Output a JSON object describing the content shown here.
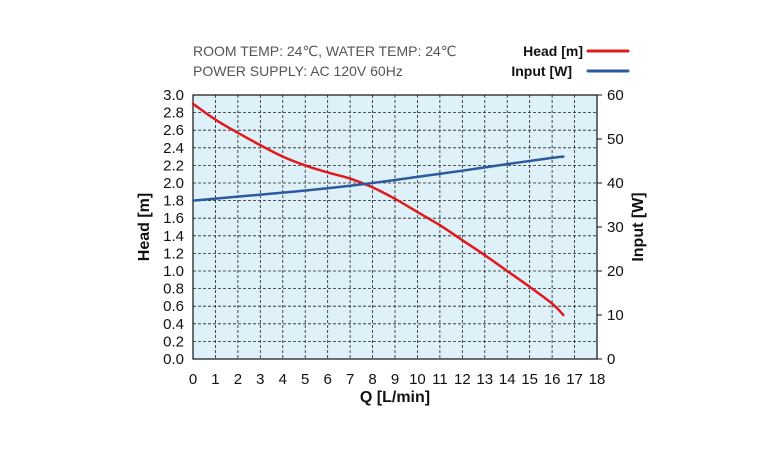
{
  "chart_data": {
    "type": "line",
    "notes": [
      "ROOM TEMP: 24℃, WATER TEMP: 24℃",
      "POWER SUPPLY: AC 120V 60Hz"
    ],
    "xlabel": "Q [L/min]",
    "ylabel_left": "Head [m]",
    "ylabel_right": "Input [W]",
    "xlim": [
      0,
      18
    ],
    "ylim_left": [
      0,
      3.0
    ],
    "ylim_right": [
      0,
      60
    ],
    "x_ticks": [
      "0",
      "1",
      "2",
      "3",
      "4",
      "5",
      "6",
      "7",
      "8",
      "9",
      "10",
      "11",
      "12",
      "13",
      "14",
      "15",
      "16",
      "17",
      "18"
    ],
    "y_left_ticks": [
      "0.0",
      "0.2",
      "0.4",
      "0.6",
      "0.8",
      "1.0",
      "1.2",
      "1.4",
      "1.6",
      "1.8",
      "2.0",
      "2.2",
      "2.4",
      "2.6",
      "2.8",
      "3.0"
    ],
    "y_right_ticks": [
      "0",
      "10",
      "20",
      "30",
      "40",
      "50",
      "60"
    ],
    "grid": true,
    "plot_background": "#dff1f8",
    "legend_position": "top-right",
    "series": [
      {
        "name": "Head [m]",
        "axis": "left",
        "color": "#e0191f",
        "x": [
          0,
          1,
          2,
          3,
          4,
          5,
          6,
          7,
          8,
          9,
          10,
          11,
          12,
          13,
          14,
          15,
          16,
          16.5
        ],
        "values": [
          2.9,
          2.72,
          2.57,
          2.43,
          2.3,
          2.2,
          2.12,
          2.05,
          1.95,
          1.82,
          1.67,
          1.52,
          1.35,
          1.18,
          1.0,
          0.82,
          0.63,
          0.5
        ]
      },
      {
        "name": "Input [W]",
        "axis": "right",
        "color": "#2c5aa0",
        "x": [
          0,
          2,
          4,
          6,
          8,
          10,
          12,
          14,
          16,
          16.5
        ],
        "values": [
          36,
          36.9,
          37.8,
          38.8,
          40,
          41.4,
          42.8,
          44.3,
          45.7,
          46
        ]
      }
    ]
  }
}
